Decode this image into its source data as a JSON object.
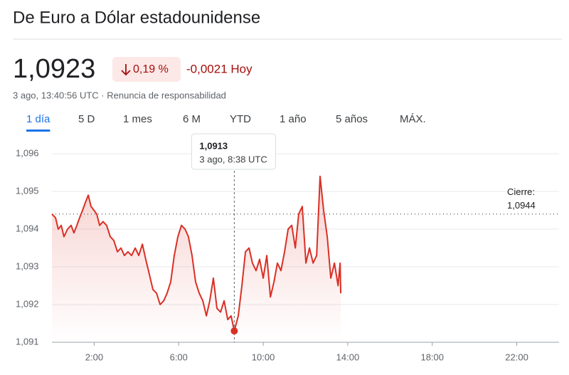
{
  "chart_data": {
    "type": "line",
    "title": "De Euro a Dólar estadounidense",
    "price": "1,0923",
    "change_percent": "0,19 %",
    "change_value": "-0,0021 Hoy",
    "timestamp": "3 ago, 13:40:56 UTC · Renuncia de responsabilidad",
    "tabs": [
      "1 día",
      "5 D",
      "1 mes",
      "6 M",
      "YTD",
      "1 año",
      "5 años",
      "MÁX."
    ],
    "active_tab": 0,
    "previous_close_label": "Cierre:",
    "previous_close": {
      "value": 1.0944,
      "label": "1,0944"
    },
    "tooltip": {
      "x": 8.63,
      "value": 1.0913,
      "label": "1,0913",
      "time": "3 ago, 8:38 UTC"
    },
    "color": "#d93025",
    "xlim": [
      0,
      24
    ],
    "ylim": [
      1.091,
      1.0962
    ],
    "xticks": [
      {
        "value": 2,
        "label": "2:00"
      },
      {
        "value": 6,
        "label": "6:00"
      },
      {
        "value": 10,
        "label": "10:00"
      },
      {
        "value": 14,
        "label": "14:00"
      },
      {
        "value": 18,
        "label": "18:00"
      },
      {
        "value": 22,
        "label": "22:00"
      }
    ],
    "yticks": [
      {
        "value": 1.091,
        "label": "1,091"
      },
      {
        "value": 1.092,
        "label": "1,092"
      },
      {
        "value": 1.093,
        "label": "1,093"
      },
      {
        "value": 1.094,
        "label": "1,094"
      },
      {
        "value": 1.095,
        "label": "1,095"
      },
      {
        "value": 1.096,
        "label": "1,096"
      }
    ],
    "grid": true,
    "x": [
      0,
      0.17,
      0.3,
      0.44,
      0.57,
      0.74,
      0.91,
      1.04,
      1.18,
      1.31,
      1.45,
      1.58,
      1.72,
      1.85,
      1.99,
      2.12,
      2.26,
      2.42,
      2.59,
      2.76,
      2.93,
      3.1,
      3.27,
      3.43,
      3.6,
      3.77,
      3.94,
      4.11,
      4.28,
      4.44,
      4.61,
      4.78,
      4.95,
      5.12,
      5.29,
      5.45,
      5.62,
      5.79,
      5.96,
      6.13,
      6.3,
      6.46,
      6.63,
      6.8,
      6.97,
      7.14,
      7.31,
      7.47,
      7.64,
      7.81,
      7.98,
      8.15,
      8.32,
      8.48,
      8.63,
      8.82,
      8.99,
      9.16,
      9.33,
      9.49,
      9.66,
      9.83,
      10.0,
      10.17,
      10.34,
      10.51,
      10.67,
      10.84,
      11.01,
      11.18,
      11.35,
      11.52,
      11.68,
      11.85,
      12.02,
      12.19,
      12.36,
      12.53,
      12.69,
      12.86,
      13.03,
      13.2,
      13.37,
      13.54,
      13.64,
      13.67
    ],
    "values": [
      1.0944,
      1.0943,
      1.094,
      1.0941,
      1.0938,
      1.094,
      1.0941,
      1.0939,
      1.0941,
      1.0943,
      1.0945,
      1.0947,
      1.0949,
      1.0946,
      1.0945,
      1.0944,
      1.0941,
      1.0942,
      1.0941,
      1.0938,
      1.0937,
      1.0934,
      1.0935,
      1.0933,
      1.0934,
      1.0933,
      1.0935,
      1.0933,
      1.0936,
      1.0932,
      1.0928,
      1.0924,
      1.0923,
      1.092,
      1.0921,
      1.0923,
      1.0926,
      1.0933,
      1.0938,
      1.0941,
      1.094,
      1.0938,
      1.0933,
      1.0926,
      1.0923,
      1.0921,
      1.0917,
      1.0921,
      1.0927,
      1.0919,
      1.0918,
      1.0921,
      1.0916,
      1.0917,
      1.0913,
      1.0917,
      1.0925,
      1.0934,
      1.0935,
      1.0931,
      1.0929,
      1.0932,
      1.0927,
      1.0933,
      1.0922,
      1.0926,
      1.0931,
      1.0929,
      1.0934,
      1.094,
      1.0941,
      1.0935,
      1.0944,
      1.0946,
      1.0931,
      1.0935,
      1.0931,
      1.0933,
      1.0954,
      1.0945,
      1.0938,
      1.0927,
      1.0931,
      1.0925,
      1.0931,
      1.0923
    ]
  }
}
